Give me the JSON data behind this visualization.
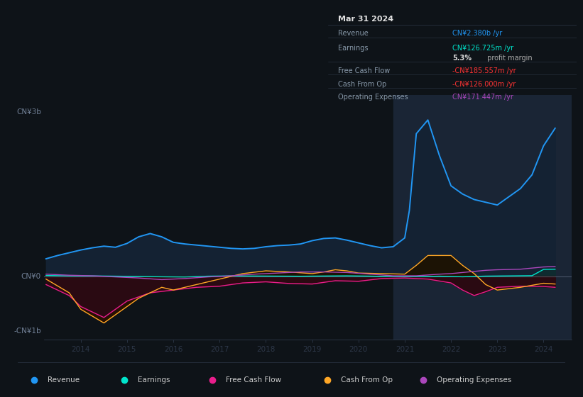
{
  "background_color": "#0e1318",
  "plot_bg_color": "#0e1318",
  "colors": {
    "revenue": "#2196f3",
    "earnings": "#00e5cc",
    "free_cash_flow": "#e91e8c",
    "cash_from_op": "#ffa726",
    "operating_expenses": "#ab47bc",
    "revenue_fill": "#142233",
    "earnings_fill": "#0d3030",
    "fcf_fill_neg": "#3a0a1a",
    "cfo_fill": "#2a1800",
    "zero_line": "#4a5568",
    "grid_line": "#1a2332",
    "spine_color": "#2d3748",
    "tick_color": "#718096"
  },
  "xlim": [
    2013.2,
    2024.6
  ],
  "ylim": [
    -1150000000.0,
    3300000000.0
  ],
  "ytick_positions": [
    -1000000000.0,
    0,
    3000000000.0
  ],
  "ytick_labels": [
    "-CN¥1b",
    "CN¥0",
    "CN¥3b"
  ],
  "xtick_values": [
    2014,
    2015,
    2016,
    2017,
    2018,
    2019,
    2020,
    2021,
    2022,
    2023,
    2024
  ],
  "xtick_labels": [
    "2014",
    "2015",
    "2016",
    "2017",
    "2018",
    "2019",
    "2020",
    "2021",
    "2022",
    "2023",
    "2024"
  ],
  "info_box": {
    "title": "Mar 31 2024",
    "rows": [
      {
        "label": "Revenue",
        "value": "CN¥2.380b /yr",
        "value_color": "#2196f3"
      },
      {
        "label": "Earnings",
        "value": "CN¥126.725m /yr",
        "value_color": "#00e5cc"
      },
      {
        "label": "",
        "value": "5.3% profit margin",
        "value_color": "#ffffff",
        "bold_part": "5.3%"
      },
      {
        "label": "Free Cash Flow",
        "value": "-CN¥185.557m /yr",
        "value_color": "#ff3333"
      },
      {
        "label": "Cash From Op",
        "value": "-CN¥126.000m /yr",
        "value_color": "#ff3333"
      },
      {
        "label": "Operating Expenses",
        "value": "CN¥171.447m /yr",
        "value_color": "#ab47bc"
      }
    ]
  },
  "legend": [
    {
      "label": "Revenue",
      "color": "#2196f3"
    },
    {
      "label": "Earnings",
      "color": "#00e5cc"
    },
    {
      "label": "Free Cash Flow",
      "color": "#e91e8c"
    },
    {
      "label": "Cash From Op",
      "color": "#ffa726"
    },
    {
      "label": "Operating Expenses",
      "color": "#ab47bc"
    }
  ],
  "revenue_x": [
    2013.25,
    2013.5,
    2013.75,
    2014.0,
    2014.25,
    2014.5,
    2014.75,
    2015.0,
    2015.25,
    2015.5,
    2015.75,
    2016.0,
    2016.25,
    2016.5,
    2016.75,
    2017.0,
    2017.25,
    2017.5,
    2017.75,
    2018.0,
    2018.25,
    2018.5,
    2018.75,
    2019.0,
    2019.25,
    2019.5,
    2019.75,
    2020.0,
    2020.25,
    2020.5,
    2020.75,
    2021.0,
    2021.1,
    2021.25,
    2021.5,
    2021.75,
    2022.0,
    2022.25,
    2022.5,
    2022.75,
    2023.0,
    2023.25,
    2023.5,
    2023.75,
    2024.0,
    2024.25
  ],
  "revenue_y": [
    320000000.0,
    380000000.0,
    430000000.0,
    480000000.0,
    520000000.0,
    550000000.0,
    530000000.0,
    600000000.0,
    720000000.0,
    780000000.0,
    720000000.0,
    620000000.0,
    590000000.0,
    570000000.0,
    550000000.0,
    530000000.0,
    510000000.0,
    500000000.0,
    510000000.0,
    540000000.0,
    560000000.0,
    570000000.0,
    590000000.0,
    650000000.0,
    690000000.0,
    700000000.0,
    660000000.0,
    610000000.0,
    560000000.0,
    520000000.0,
    540000000.0,
    700000000.0,
    1200000000.0,
    2600000000.0,
    2850000000.0,
    2200000000.0,
    1650000000.0,
    1500000000.0,
    1400000000.0,
    1350000000.0,
    1300000000.0,
    1450000000.0,
    1600000000.0,
    1850000000.0,
    2380000000.0,
    2700000000.0
  ],
  "earnings_x": [
    2013.25,
    2013.75,
    2014.25,
    2014.75,
    2015.25,
    2015.75,
    2016.25,
    2016.75,
    2017.25,
    2017.75,
    2018.25,
    2018.75,
    2019.25,
    2019.75,
    2020.25,
    2020.75,
    2021.25,
    2021.75,
    2022.25,
    2022.75,
    2023.25,
    2023.75,
    2024.0,
    2024.25
  ],
  "earnings_y": [
    15000000.0,
    10000000.0,
    8000000.0,
    3000000.0,
    -2000000.0,
    -8000000.0,
    -12000000.0,
    3000000.0,
    8000000.0,
    6000000.0,
    4000000.0,
    2000000.0,
    6000000.0,
    9000000.0,
    4000000.0,
    -3000000.0,
    -5000000.0,
    3000000.0,
    -8000000.0,
    4000000.0,
    8000000.0,
    12000000.0,
    126000000.0,
    130000000.0
  ],
  "fcf_x": [
    2013.25,
    2013.75,
    2014.0,
    2014.5,
    2015.0,
    2015.5,
    2016.0,
    2016.5,
    2017.0,
    2017.5,
    2018.0,
    2018.5,
    2019.0,
    2019.5,
    2020.0,
    2020.5,
    2021.0,
    2021.5,
    2022.0,
    2022.25,
    2022.5,
    2022.75,
    2023.0,
    2023.5,
    2024.0,
    2024.25
  ],
  "fcf_y": [
    -150000000.0,
    -350000000.0,
    -550000000.0,
    -750000000.0,
    -450000000.0,
    -300000000.0,
    -250000000.0,
    -200000000.0,
    -180000000.0,
    -120000000.0,
    -100000000.0,
    -130000000.0,
    -140000000.0,
    -80000000.0,
    -90000000.0,
    -40000000.0,
    -30000000.0,
    -50000000.0,
    -120000000.0,
    -250000000.0,
    -350000000.0,
    -280000000.0,
    -200000000.0,
    -180000000.0,
    -185000000.0,
    -200000000.0
  ],
  "cfo_x": [
    2013.25,
    2013.75,
    2014.0,
    2014.5,
    2015.0,
    2015.25,
    2015.5,
    2015.75,
    2016.0,
    2016.5,
    2017.0,
    2017.5,
    2018.0,
    2018.5,
    2019.0,
    2019.25,
    2019.5,
    2019.75,
    2020.0,
    2020.5,
    2021.0,
    2021.25,
    2021.5,
    2022.0,
    2022.25,
    2022.5,
    2022.75,
    2023.0,
    2023.5,
    2024.0,
    2024.25
  ],
  "cfo_y": [
    -50000000.0,
    -300000000.0,
    -600000000.0,
    -850000000.0,
    -550000000.0,
    -400000000.0,
    -300000000.0,
    -200000000.0,
    -250000000.0,
    -150000000.0,
    -50000000.0,
    50000000.0,
    100000000.0,
    80000000.0,
    50000000.0,
    80000000.0,
    120000000.0,
    100000000.0,
    60000000.0,
    50000000.0,
    40000000.0,
    200000000.0,
    380000000.0,
    380000000.0,
    200000000.0,
    50000000.0,
    -150000000.0,
    -250000000.0,
    -200000000.0,
    -126000000.0,
    -140000000.0
  ],
  "opex_x": [
    2013.25,
    2013.75,
    2014.25,
    2014.75,
    2015.25,
    2015.75,
    2016.25,
    2016.75,
    2017.25,
    2017.75,
    2018.25,
    2018.75,
    2019.25,
    2019.75,
    2020.25,
    2020.75,
    2021.25,
    2021.75,
    2022.0,
    2022.25,
    2022.5,
    2022.75,
    2023.0,
    2023.5,
    2024.0,
    2024.25
  ],
  "opex_y": [
    40000000.0,
    20000000.0,
    10000000.0,
    -10000000.0,
    -30000000.0,
    -60000000.0,
    -40000000.0,
    -10000000.0,
    10000000.0,
    40000000.0,
    60000000.0,
    80000000.0,
    80000000.0,
    70000000.0,
    40000000.0,
    10000000.0,
    10000000.0,
    40000000.0,
    50000000.0,
    70000000.0,
    90000000.0,
    110000000.0,
    120000000.0,
    130000000.0,
    171000000.0,
    180000000.0
  ],
  "highlight_xspan": [
    2020.75,
    2024.6
  ]
}
